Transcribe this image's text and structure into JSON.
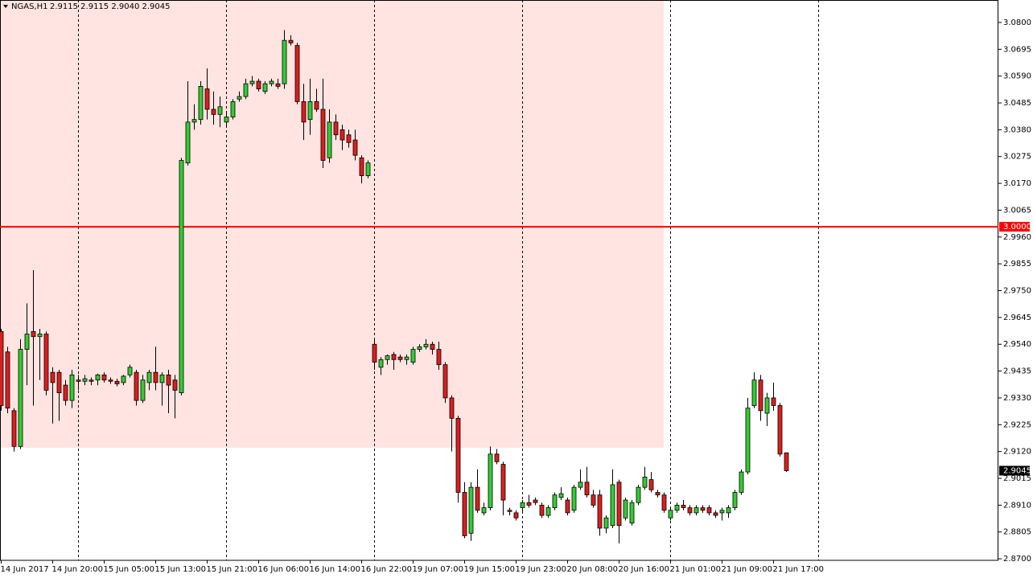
{
  "chart_data": {
    "type": "candlestick",
    "title": "NGAS,H1",
    "ohlc_text": "2.9115 2.9115 2.9040 2.9045",
    "up_color": "#32cd32",
    "down_color": "#dc1e1e",
    "ylim": [
      2.8694,
      3.0888
    ],
    "yticks": [
      {
        "value": 3.08,
        "label": "3.0800"
      },
      {
        "value": 3.0695,
        "label": "3.0695"
      },
      {
        "value": 3.059,
        "label": "3.0590"
      },
      {
        "value": 3.0485,
        "label": "3.0485"
      },
      {
        "value": 3.038,
        "label": "3.0380"
      },
      {
        "value": 3.0275,
        "label": "3.0275"
      },
      {
        "value": 3.017,
        "label": "3.0170"
      },
      {
        "value": 3.0065,
        "label": "3.0065"
      },
      {
        "value": 2.996,
        "label": "2.9960"
      },
      {
        "value": 2.9855,
        "label": "2.9855"
      },
      {
        "value": 2.975,
        "label": "2.9750"
      },
      {
        "value": 2.9645,
        "label": "2.9645"
      },
      {
        "value": 2.954,
        "label": "2.9540"
      },
      {
        "value": 2.9435,
        "label": "2.9435"
      },
      {
        "value": 2.933,
        "label": "2.9330"
      },
      {
        "value": 2.9225,
        "label": "2.9225"
      },
      {
        "value": 2.912,
        "label": "2.9120"
      },
      {
        "value": 2.9015,
        "label": "2.9015"
      },
      {
        "value": 2.891,
        "label": "2.8910"
      },
      {
        "value": 2.8805,
        "label": "2.8805"
      },
      {
        "value": 2.87,
        "label": "2.8700"
      }
    ],
    "level": {
      "value": 3,
      "label": "3.0000",
      "color": "#ff0000"
    },
    "last_price": {
      "value": 2.9045,
      "label": "2.9045"
    },
    "categories": [
      "14 Jun 2017",
      null,
      null,
      null,
      null,
      null,
      null,
      null,
      "14 Jun 20:00",
      null,
      null,
      null,
      null,
      null,
      null,
      null,
      "15 Jun 05:00",
      null,
      null,
      null,
      null,
      null,
      null,
      null,
      "15 Jun 13:00",
      null,
      null,
      null,
      null,
      null,
      null,
      null,
      "15 Jun 21:00",
      null,
      null,
      null,
      null,
      null,
      null,
      null,
      "16 Jun 06:00",
      null,
      null,
      null,
      null,
      null,
      null,
      null,
      "16 Jun 14:00",
      null,
      null,
      null,
      null,
      null,
      null,
      null,
      "16 Jun 22:00",
      null,
      null,
      null,
      null,
      null,
      null,
      null,
      "19 Jun 07:00",
      null,
      null,
      null,
      null,
      null,
      null,
      null,
      "19 Jun 15:00",
      null,
      null,
      null,
      null,
      null,
      null,
      null,
      "19 Jun 23:00",
      null,
      null,
      null,
      null,
      null,
      null,
      null,
      "20 Jun 08:00",
      null,
      null,
      null,
      null,
      null,
      null,
      null,
      "20 Jun 16:00",
      null,
      null,
      null,
      null,
      null,
      null,
      null,
      "21 Jun 01:00",
      null,
      null,
      null,
      null,
      null,
      null,
      null,
      "21 Jun 09:00",
      null,
      null,
      null,
      null,
      null,
      null,
      null,
      "21 Jun 17:00",
      null,
      null
    ],
    "open": [
      2.959,
      2.951,
      2.928,
      2.914,
      2.952,
      2.959,
      2.957,
      2.958,
      2.943,
      2.943,
      2.938,
      2.932,
      2.94,
      2.9395,
      2.94,
      2.94,
      2.942,
      2.94,
      2.9395,
      2.939,
      2.942,
      2.943,
      2.932,
      2.939,
      2.943,
      2.939,
      2.942,
      2.94,
      2.935,
      3.025,
      3.041,
      3.042,
      3.054,
      3.046,
      3.044,
      3.041,
      3.043,
      3.05,
      3.051,
      3.056,
      3.057,
      3.053,
      3.056,
      3.056,
      3.056,
      3.073,
      3.071,
      3.049,
      3.042,
      3.049,
      3.046,
      3.027,
      3.041,
      3.038,
      3.036,
      3.034,
      3.027,
      3.02,
      2.954,
      2.945,
      2.948,
      2.95,
      2.949,
      2.948,
      2.947,
      2.952,
      2.953,
      2.954,
      2.952,
      2.946,
      2.933,
      2.925,
      2.896,
      2.88,
      2.898,
      2.888,
      2.89,
      2.911,
      2.907,
      2.889,
      2.888,
      2.89,
      2.892,
      2.893,
      2.891,
      2.887,
      2.89,
      2.894,
      2.893,
      2.889,
      2.898,
      2.9,
      2.895,
      2.895,
      2.882,
      2.883,
      2.9,
      2.886,
      2.884,
      2.892,
      2.898,
      2.901,
      2.896,
      2.895,
      2.886,
      2.889,
      2.891,
      2.89,
      2.888,
      2.89,
      2.89,
      2.888,
      2.888,
      2.888,
      2.89,
      2.896,
      2.904,
      2.93,
      2.94,
      2.927,
      2.933,
      2.93,
      2.9115
    ],
    "high": [
      2.96,
      2.953,
      2.929,
      2.956,
      2.97,
      2.983,
      2.96,
      2.959,
      2.945,
      2.944,
      2.94,
      2.944,
      2.942,
      2.942,
      2.941,
      2.9425,
      2.943,
      2.941,
      2.9405,
      2.942,
      2.946,
      2.944,
      2.942,
      2.944,
      2.953,
      2.943,
      2.944,
      2.942,
      3.027,
      3.057,
      3.048,
      3.057,
      3.062,
      3.053,
      3.051,
      3.045,
      3.05,
      3.053,
      3.058,
      3.059,
      3.058,
      3.057,
      3.058,
      3.058,
      3.077,
      3.075,
      3.072,
      3.056,
      3.058,
      3.054,
      3.058,
      3.046,
      3.044,
      3.04,
      3.038,
      3.038,
      3.028,
      3.026,
      2.956,
      2.949,
      2.95,
      2.951,
      2.95,
      2.95,
      2.953,
      2.954,
      2.956,
      2.955,
      2.955,
      2.947,
      2.934,
      2.926,
      2.9,
      2.9,
      2.905,
      2.892,
      2.914,
      2.913,
      2.908,
      2.89,
      2.889,
      2.893,
      2.895,
      2.894,
      2.892,
      2.891,
      2.896,
      2.898,
      2.894,
      2.899,
      2.905,
      2.906,
      2.897,
      2.897,
      2.887,
      2.905,
      2.901,
      2.894,
      2.893,
      2.899,
      2.906,
      2.904,
      2.897,
      2.896,
      2.89,
      2.892,
      2.893,
      2.891,
      2.891,
      2.891,
      2.891,
      2.889,
      2.89,
      2.891,
      2.897,
      2.905,
      2.933,
      2.943,
      2.942,
      2.935,
      2.939,
      2.931,
      2.9115
    ],
    "low": [
      2.928,
      2.927,
      2.912,
      2.913,
      2.938,
      2.93,
      2.94,
      2.934,
      2.923,
      2.924,
      2.93,
      2.929,
      2.936,
      2.938,
      2.938,
      2.938,
      2.939,
      2.9385,
      2.9375,
      2.938,
      2.941,
      2.93,
      2.931,
      2.936,
      2.936,
      2.93,
      2.927,
      2.925,
      2.934,
      3.024,
      3.038,
      3.04,
      3.042,
      3.04,
      3.039,
      3.039,
      3.042,
      3.049,
      3.05,
      3.055,
      3.053,
      3.052,
      3.055,
      3.054,
      3.054,
      3.071,
      3.048,
      3.034,
      3.036,
      3.045,
      3.023,
      3.025,
      3.034,
      3.03,
      3.031,
      3.026,
      3.017,
      3.019,
      2.944,
      2.942,
      2.946,
      2.944,
      2.947,
      2.946,
      2.946,
      2.951,
      2.952,
      2.95,
      2.944,
      2.931,
      2.912,
      2.892,
      2.878,
      2.877,
      2.888,
      2.887,
      2.889,
      2.907,
      2.887,
      2.887,
      2.885,
      2.888,
      2.89,
      2.891,
      2.886,
      2.886,
      2.889,
      2.893,
      2.887,
      2.888,
      2.897,
      2.894,
      2.89,
      2.879,
      2.88,
      2.882,
      2.876,
      2.885,
      2.883,
      2.891,
      2.897,
      2.896,
      2.894,
      2.888,
      2.885,
      2.888,
      2.889,
      2.887,
      2.887,
      2.888,
      2.887,
      2.886,
      2.885,
      2.886,
      2.889,
      2.895,
      2.903,
      2.929,
      2.924,
      2.922,
      2.928,
      2.91,
      2.904
    ],
    "close": [
      2.93,
      2.929,
      2.914,
      2.952,
      2.958,
      2.957,
      2.958,
      2.936,
      2.939,
      2.935,
      2.932,
      2.942,
      2.9395,
      2.9405,
      2.9395,
      2.942,
      2.94,
      2.9395,
      2.9385,
      2.9415,
      2.945,
      2.932,
      2.94,
      2.943,
      2.939,
      2.942,
      2.938,
      2.936,
      3.026,
      3.041,
      3.042,
      3.055,
      3.046,
      3.044,
      3.047,
      3.043,
      3.049,
      3.051,
      3.056,
      3.057,
      3.054,
      3.056,
      3.057,
      3.055,
      3.073,
      3.072,
      3.049,
      3.041,
      3.049,
      3.046,
      3.026,
      3.041,
      3.036,
      3.034,
      3.033,
      3.028,
      3.02,
      3.025,
      2.947,
      2.948,
      2.9495,
      2.948,
      2.948,
      2.949,
      2.952,
      2.953,
      2.954,
      2.952,
      2.946,
      2.933,
      2.925,
      2.896,
      2.879,
      2.898,
      2.889,
      2.89,
      2.911,
      2.908,
      2.893,
      2.8885,
      2.886,
      2.892,
      2.891,
      2.892,
      2.887,
      2.89,
      2.895,
      2.8955,
      2.888,
      2.898,
      2.9,
      2.895,
      2.891,
      2.882,
      2.886,
      2.899,
      2.883,
      2.893,
      2.892,
      2.898,
      2.902,
      2.897,
      2.895,
      2.889,
      2.889,
      2.891,
      2.89,
      2.888,
      2.89,
      2.889,
      2.888,
      2.887,
      2.889,
      2.89,
      2.896,
      2.904,
      2.929,
      2.94,
      2.928,
      2.933,
      2.93,
      2.911,
      2.9045
    ]
  }
}
